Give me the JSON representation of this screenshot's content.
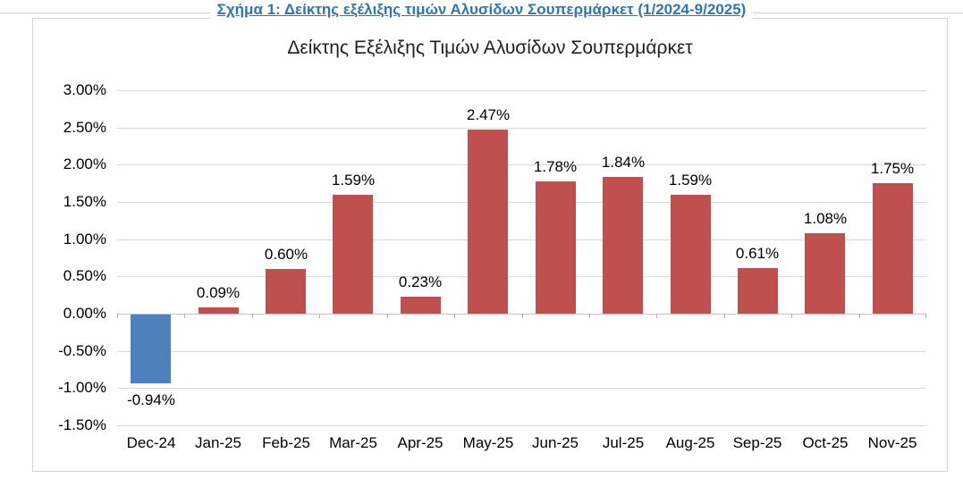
{
  "caption": {
    "text": "Σχήμα 1: Δείκτης εξέλιξης τιμών Αλυσίδων Σουπερμάρκετ (1/2024-9/2025)",
    "color": "#2E75B6"
  },
  "chart_data": {
    "type": "bar",
    "title": "Δείκτης Εξέλιξης Τιμών Αλυσίδων Σουπερμάρκετ",
    "categories": [
      "Dec-24",
      "Jan-25",
      "Feb-25",
      "Mar-25",
      "Apr-25",
      "May-25",
      "Jun-25",
      "Jul-25",
      "Aug-25",
      "Sep-25",
      "Oct-25",
      "Nov-25"
    ],
    "values": [
      -0.94,
      0.09,
      0.6,
      1.59,
      0.23,
      2.47,
      1.78,
      1.84,
      1.59,
      0.61,
      1.08,
      1.75
    ],
    "value_labels": [
      "-0.94%",
      "0.09%",
      "0.60%",
      "1.59%",
      "0.23%",
      "2.47%",
      "1.78%",
      "1.84%",
      "1.59%",
      "0.61%",
      "1.08%",
      "1.75%"
    ],
    "ytick_labels": [
      "3.00%",
      "2.50%",
      "2.00%",
      "1.50%",
      "1.00%",
      "0.50%",
      "0.00%",
      "-0.50%",
      "-1.00%",
      "-1.50%"
    ],
    "ylim": [
      -1.5,
      3.0
    ],
    "ytick_step": 0.5,
    "xlabel": "",
    "ylabel": "",
    "grid": true,
    "legend": "none",
    "colors": {
      "positive_bar": "#C0504D",
      "negative_bar": "#4F81BD",
      "gridline": "#D9D9D9",
      "axis_line": "#C3C3C3",
      "tick": "#ABABAB",
      "label_text": "#000000"
    }
  }
}
